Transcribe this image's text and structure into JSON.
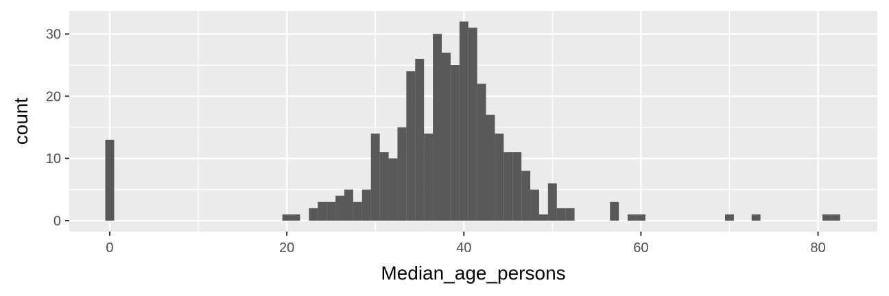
{
  "chart_data": {
    "type": "histogram",
    "x_label": "Median_age_persons",
    "y_label": "count",
    "bins": [
      -0.5,
      0.5,
      1.5,
      2.5,
      3.5,
      4.5,
      5.5,
      6.5,
      7.5,
      8.5,
      9.5,
      10.5,
      11.5,
      12.5,
      13.5,
      14.5,
      15.5,
      16.5,
      17.5,
      18.5,
      19.5,
      20.5,
      21.5,
      22.5,
      23.5,
      24.5,
      25.5,
      26.5,
      27.5,
      28.5,
      29.5,
      30.5,
      31.5,
      32.5,
      33.5,
      34.5,
      35.5,
      36.5,
      37.5,
      38.5,
      39.5,
      40.5,
      41.5,
      42.5,
      43.5,
      44.5,
      45.5,
      46.5,
      47.5,
      48.5,
      49.5,
      50.5,
      51.5,
      52.5,
      53.5,
      54.5,
      55.5,
      56.5,
      57.5,
      58.5,
      59.5,
      60.5,
      61.5,
      62.5,
      63.5,
      64.5,
      65.5,
      66.5,
      67.5,
      68.5,
      69.5,
      70.5,
      71.5,
      72.5,
      73.5,
      74.5,
      75.5,
      76.5,
      77.5,
      78.5,
      79.5,
      80.5,
      81.5,
      82.5
    ],
    "values": [
      13,
      0,
      0,
      0,
      0,
      0,
      0,
      0,
      0,
      0,
      0,
      0,
      0,
      0,
      0,
      0,
      0,
      0,
      0,
      0,
      1,
      1,
      0,
      2,
      3,
      3,
      4,
      5,
      3,
      5,
      14,
      11,
      10,
      15,
      24,
      26,
      14,
      30,
      27,
      25,
      32,
      31,
      22,
      17,
      14,
      11,
      11,
      8,
      5,
      1,
      6,
      2,
      2,
      0,
      0,
      0,
      0,
      3,
      0,
      1,
      1,
      0,
      0,
      0,
      0,
      0,
      0,
      0,
      0,
      0,
      1,
      0,
      0,
      1,
      0,
      0,
      0,
      0,
      0,
      0,
      0,
      1,
      1
    ],
    "color": "#595959",
    "xlim": [
      -4.57,
      86.7
    ],
    "ylim": [
      -1.76,
      33.7
    ],
    "xticks": [
      0,
      20,
      40,
      60,
      80
    ],
    "yticks": [
      0,
      10,
      20,
      30
    ],
    "minor_xticks": [
      10,
      30,
      50,
      70
    ],
    "minor_yticks": [
      5,
      15,
      25
    ],
    "grid": true
  }
}
